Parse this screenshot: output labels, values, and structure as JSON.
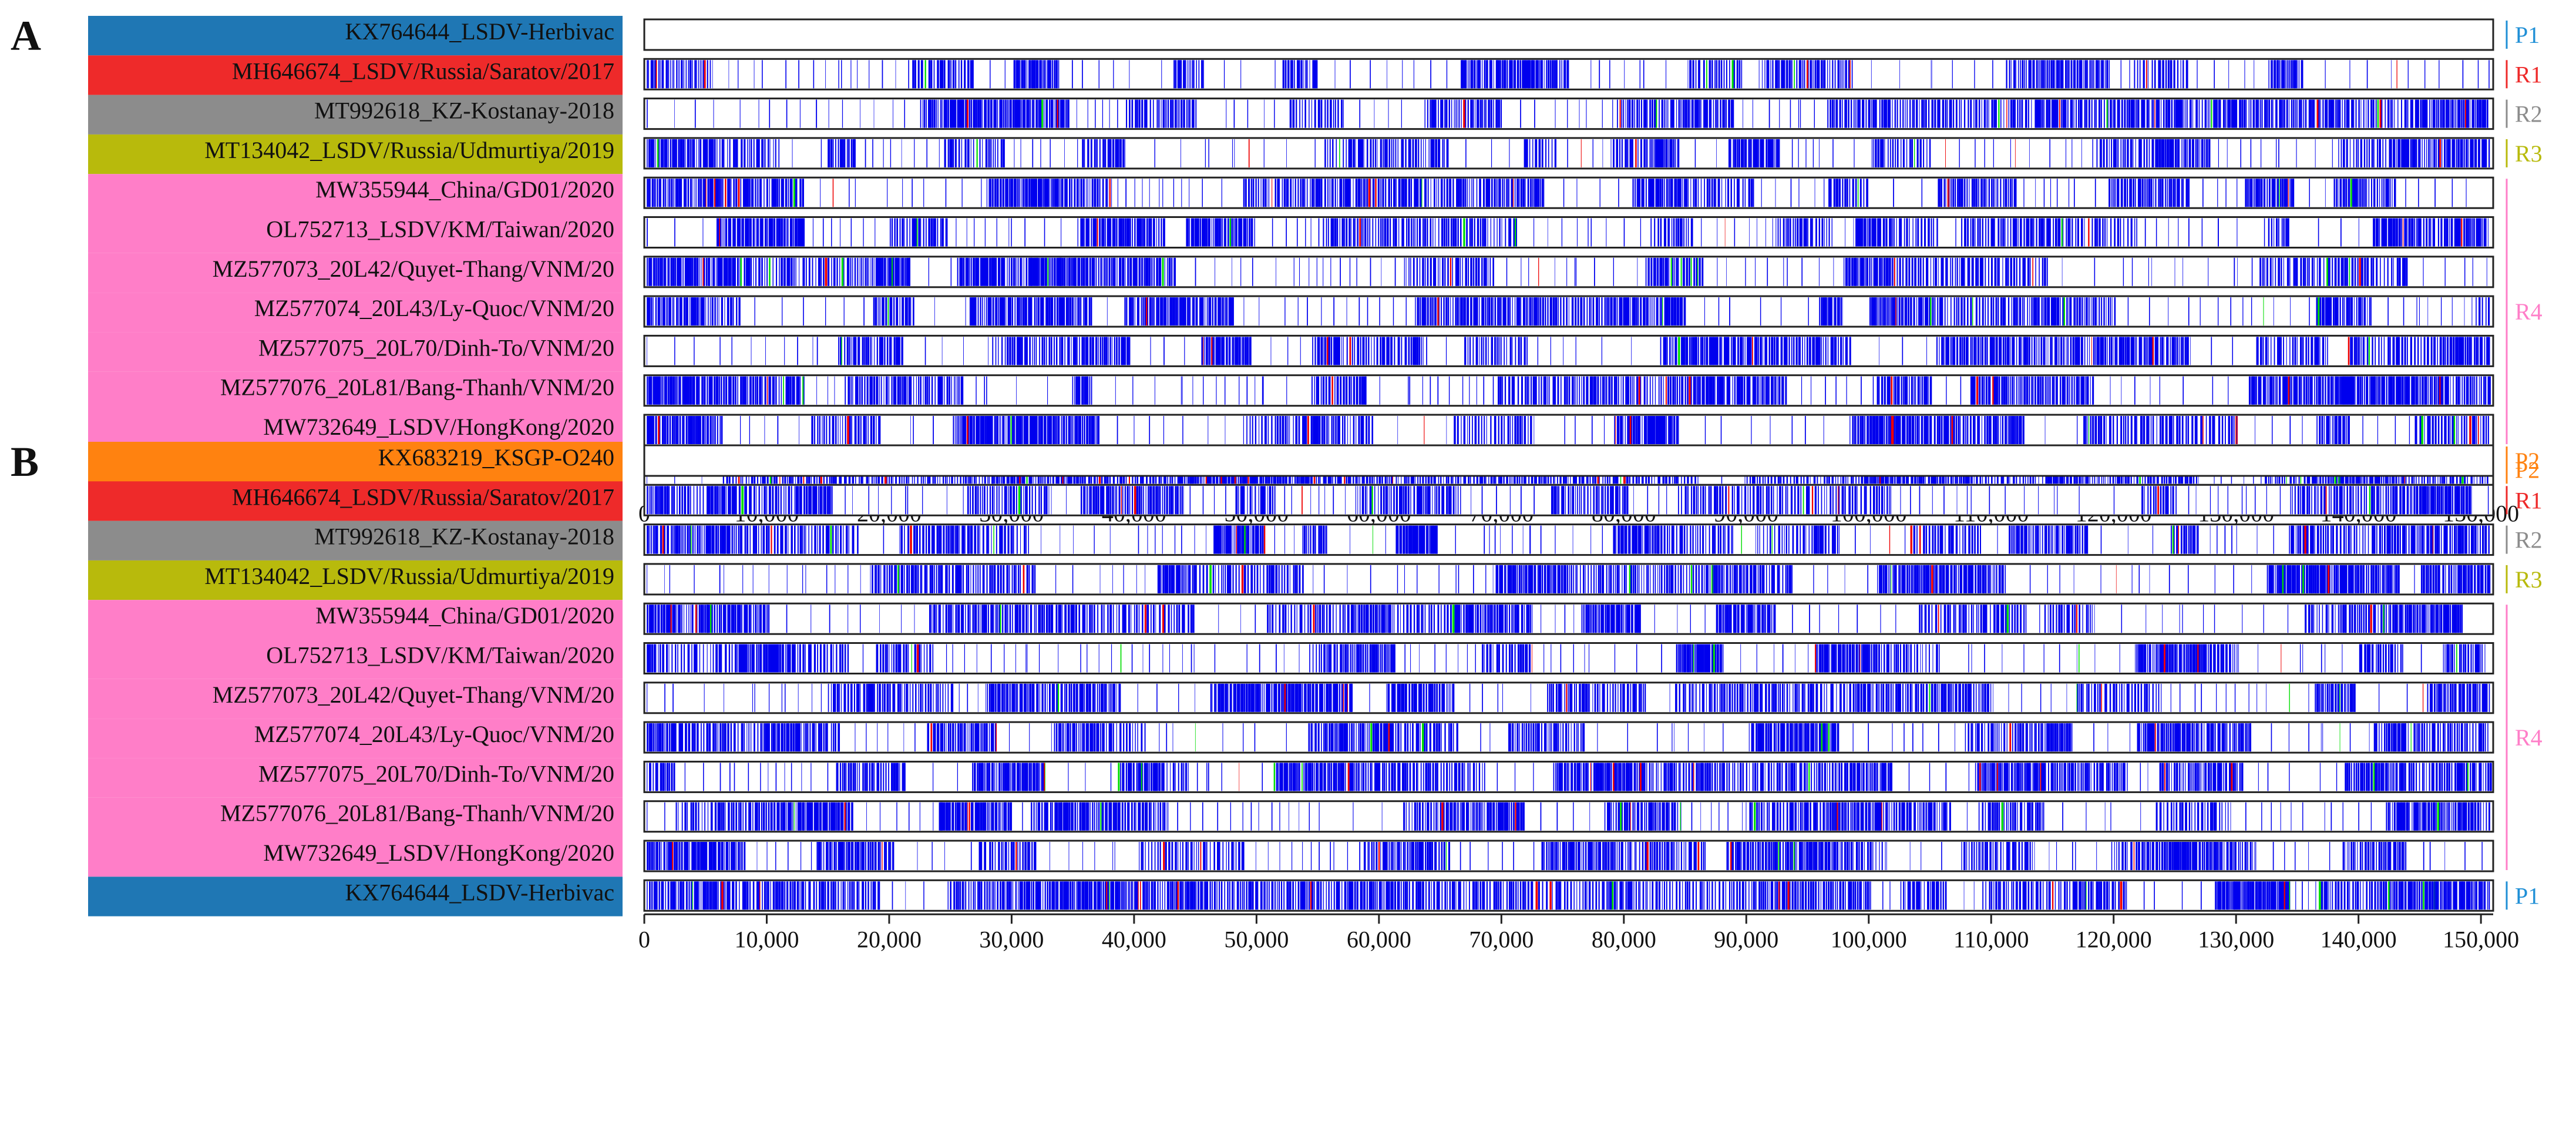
{
  "chart_data": [
    {
      "type": "heatmap",
      "panel_label": "A",
      "parent_label": "P1",
      "x_ticks": [
        0,
        10000,
        20000,
        30000,
        40000,
        50000,
        60000,
        70000,
        80000,
        90000,
        100000,
        110000,
        120000,
        130000,
        140000,
        150000
      ],
      "x_tick_labels": [
        "0",
        "10,000",
        "20,000",
        "30,000",
        "40,000",
        "50,000",
        "60,000",
        "70,000",
        "80,000",
        "90,000",
        "100,000",
        "110,000",
        "120,000",
        "130,000",
        "140,000",
        "150,000"
      ],
      "xlim": [
        0,
        151000
      ],
      "tracks": [
        {
          "name": "KX764644_LSDV-Herbivac",
          "group": "P1",
          "color": "#1f77b4",
          "density": 0
        },
        {
          "name": "MH646674_LSDV/Russia/Saratov/2017",
          "group": "R1",
          "color": "#ee2a2a",
          "density": 0.45
        },
        {
          "name": "MT992618_KZ-Kostanay-2018",
          "group": "R2",
          "color": "#8c8c8c",
          "density": 0.55
        },
        {
          "name": "MT134042_LSDV/Russia/Udmurtiya/2019",
          "group": "R3",
          "color": "#b8ba0c",
          "density": 0.5
        },
        {
          "name": "MW355944_China/GD01/2020",
          "group": "R4",
          "color": "#ff7ec8",
          "density": 0.6
        },
        {
          "name": "OL752713_LSDV/KM/Taiwan/2020",
          "group": "R4",
          "color": "#ff7ec8",
          "density": 0.6
        },
        {
          "name": "MZ577073_20L42/Quyet-Thang/VNM/20",
          "group": "R4",
          "color": "#ff7ec8",
          "density": 0.6
        },
        {
          "name": "MZ577074_20L43/Ly-Quoc/VNM/20",
          "group": "R4",
          "color": "#ff7ec8",
          "density": 0.6
        },
        {
          "name": "MZ577075_20L70/Dinh-To/VNM/20",
          "group": "R4",
          "color": "#ff7ec8",
          "density": 0.6
        },
        {
          "name": "MZ577076_20L81/Bang-Thanh/VNM/20",
          "group": "R4",
          "color": "#ff7ec8",
          "density": 0.6
        },
        {
          "name": "MW732649_LSDV/HongKong/2020",
          "group": "R4",
          "color": "#ff7ec8",
          "density": 0.6
        },
        {
          "name": "KX683219_KSGP-O240",
          "group": "P2",
          "color": "#ff8210",
          "density": 0.85
        }
      ],
      "group_labels": [
        {
          "label": "P1",
          "color": "#1f8fd6"
        },
        {
          "label": "R1",
          "color": "#ee2a2a"
        },
        {
          "label": "R2",
          "color": "#8c8c8c"
        },
        {
          "label": "R3",
          "color": "#b8ba0c"
        },
        {
          "label": "R4",
          "color": "#ff7ec8"
        },
        {
          "label": "P2",
          "color": "#ff8210"
        }
      ],
      "difference_colors": {
        "substitution": "#0000ee",
        "insertion": "#ee0000",
        "deletion": "#00dd00"
      }
    },
    {
      "type": "heatmap",
      "panel_label": "B",
      "parent_label": "P2",
      "x_ticks": [
        0,
        10000,
        20000,
        30000,
        40000,
        50000,
        60000,
        70000,
        80000,
        90000,
        100000,
        110000,
        120000,
        130000,
        140000,
        150000
      ],
      "x_tick_labels": [
        "0",
        "10,000",
        "20,000",
        "30,000",
        "40,000",
        "50,000",
        "60,000",
        "70,000",
        "80,000",
        "90,000",
        "100,000",
        "110,000",
        "120,000",
        "130,000",
        "140,000",
        "150,000"
      ],
      "xlim": [
        0,
        151000
      ],
      "tracks": [
        {
          "name": "KX683219_KSGP-O240",
          "group": "P2",
          "color": "#ff8210",
          "density": 0
        },
        {
          "name": "MH646674_LSDV/Russia/Saratov/2017",
          "group": "R1",
          "color": "#ee2a2a",
          "density": 0.6
        },
        {
          "name": "MT992618_KZ-Kostanay-2018",
          "group": "R2",
          "color": "#8c8c8c",
          "density": 0.5
        },
        {
          "name": "MT134042_LSDV/Russia/Udmurtiya/2019",
          "group": "R3",
          "color": "#b8ba0c",
          "density": 0.45
        },
        {
          "name": "MW355944_China/GD01/2020",
          "group": "R4",
          "color": "#ff7ec8",
          "density": 0.55
        },
        {
          "name": "OL752713_LSDV/KM/Taiwan/2020",
          "group": "R4",
          "color": "#ff7ec8",
          "density": 0.55
        },
        {
          "name": "MZ577073_20L42/Quyet-Thang/VNM/20",
          "group": "R4",
          "color": "#ff7ec8",
          "density": 0.55
        },
        {
          "name": "MZ577074_20L43/Ly-Quoc/VNM/20",
          "group": "R4",
          "color": "#ff7ec8",
          "density": 0.55
        },
        {
          "name": "MZ577075_20L70/Dinh-To/VNM/20",
          "group": "R4",
          "color": "#ff7ec8",
          "density": 0.55
        },
        {
          "name": "MZ577076_20L81/Bang-Thanh/VNM/20",
          "group": "R4",
          "color": "#ff7ec8",
          "density": 0.55
        },
        {
          "name": "MW732649_LSDV/HongKong/2020",
          "group": "R4",
          "color": "#ff7ec8",
          "density": 0.55
        },
        {
          "name": "KX764644_LSDV-Herbivac",
          "group": "P1",
          "color": "#1f77b4",
          "density": 0.85
        }
      ],
      "group_labels": [
        {
          "label": "P2",
          "color": "#ff8210"
        },
        {
          "label": "R1",
          "color": "#ee2a2a"
        },
        {
          "label": "R2",
          "color": "#8c8c8c"
        },
        {
          "label": "R3",
          "color": "#b8ba0c"
        },
        {
          "label": "R4",
          "color": "#ff7ec8"
        },
        {
          "label": "P1",
          "color": "#1f8fd6"
        }
      ],
      "difference_colors": {
        "substitution": "#0000ee",
        "insertion": "#ee0000",
        "deletion": "#00dd00"
      }
    }
  ]
}
